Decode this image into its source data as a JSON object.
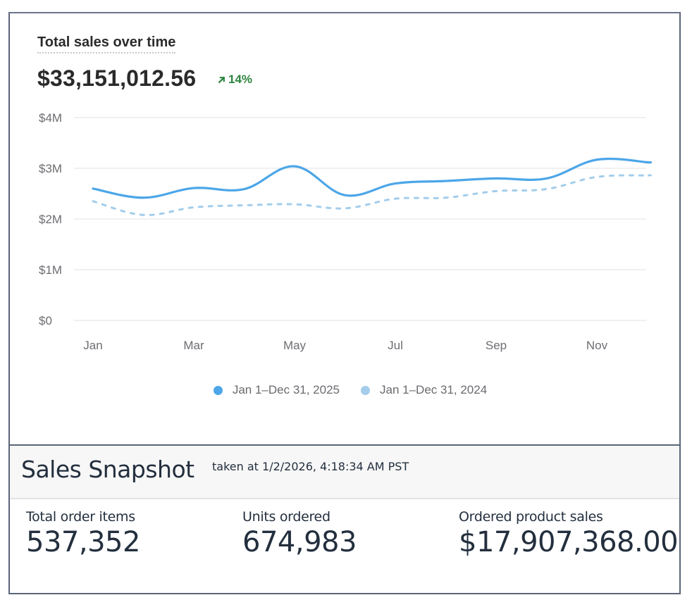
{
  "chart_card": {
    "title": "Total sales over time",
    "total_value": "$33,151,012.56",
    "delta": {
      "direction": "up",
      "label": "14%",
      "icon": "arrow-up-right-icon",
      "color": "#2e8540"
    }
  },
  "chart_data": {
    "type": "line",
    "title": "Total sales over time",
    "xlabel": "",
    "ylabel": "",
    "x": [
      "Jan",
      "Feb",
      "Mar",
      "Apr",
      "May",
      "Jun",
      "Jul",
      "Aug",
      "Sep",
      "Oct",
      "Nov",
      "Dec"
    ],
    "x_tick_labels": [
      "Jan",
      "Mar",
      "May",
      "Jul",
      "Sep",
      "Nov"
    ],
    "y_tick_labels": [
      "$0",
      "$1M",
      "$2M",
      "$3M",
      "$4M"
    ],
    "y_ticks": [
      0,
      1000000,
      2000000,
      3000000,
      4000000
    ],
    "ylim": [
      0,
      4000000
    ],
    "grid": true,
    "legend_position": "bottom-center",
    "series": [
      {
        "name": "Jan 1–Dec 31, 2025",
        "style": "solid",
        "color": "#4ca6e8",
        "values": [
          2600000,
          2420000,
          2610000,
          2590000,
          3040000,
          2470000,
          2700000,
          2750000,
          2800000,
          2800000,
          3170000,
          3120000
        ]
      },
      {
        "name": "Jan 1–Dec 31, 2024",
        "style": "dashed",
        "color": "#a3cdeb",
        "values": [
          2350000,
          2080000,
          2230000,
          2270000,
          2290000,
          2210000,
          2400000,
          2420000,
          2550000,
          2590000,
          2830000,
          2860000
        ]
      }
    ]
  },
  "snapshot": {
    "title": "Sales Snapshot",
    "taken_at": "taken at 1/2/2026, 4:18:34 AM PST",
    "metrics": [
      {
        "label": "Total order items",
        "value": "537,352"
      },
      {
        "label": "Units ordered",
        "value": "674,983"
      },
      {
        "label": "Ordered product sales",
        "value": "$17,907,368.00"
      }
    ]
  }
}
